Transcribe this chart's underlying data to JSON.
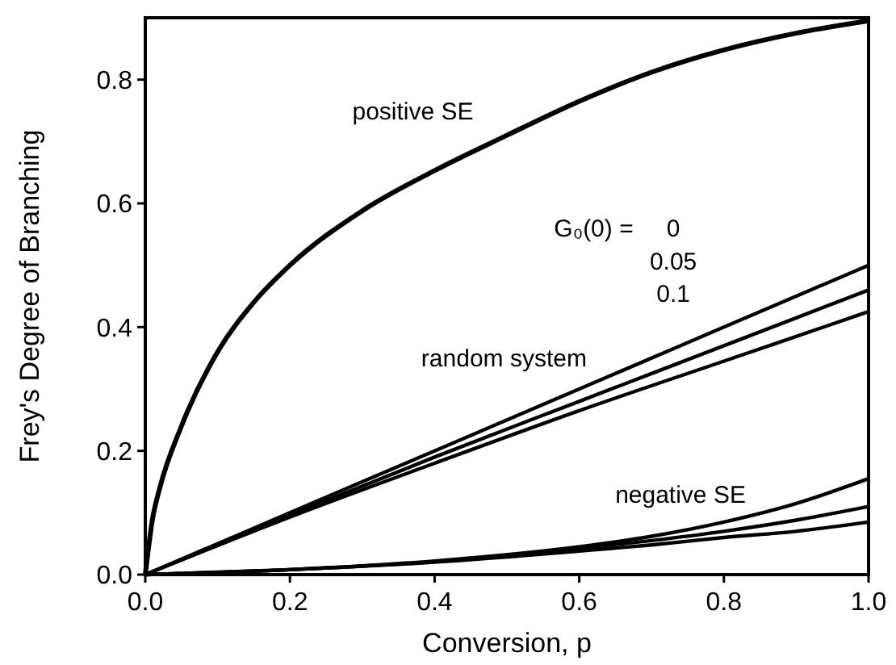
{
  "chart_data": {
    "type": "line",
    "xlabel": "Conversion, p",
    "ylabel": "Frey's Degree of Branching",
    "xlim": [
      0,
      1
    ],
    "ylim": [
      0,
      0.9
    ],
    "xticks": [
      {
        "value": 0,
        "label": "0.0"
      },
      0.2,
      0.4,
      0.6,
      0.8,
      {
        "value": 1,
        "label": "1.0"
      }
    ],
    "yticks": [
      {
        "value": 0,
        "label": "0.0"
      },
      0.2,
      0.4,
      0.6,
      0.8
    ],
    "grid": false,
    "marker": "none",
    "line_style": "solid",
    "series": [
      {
        "color": "#000000",
        "x": [
          0,
          0.01,
          0.02,
          0.05,
          0.1,
          0.15,
          0.2,
          0.3,
          0.4,
          0.5,
          0.6,
          0.7,
          0.8,
          0.9,
          1
        ],
        "values": [
          0,
          0.09,
          0.14,
          0.24,
          0.36,
          0.44,
          0.5,
          0.588,
          0.653,
          0.71,
          0.765,
          0.812,
          0.848,
          0.875,
          0.895
        ]
      },
      {
        "color": "#000000",
        "x": [
          0,
          0.2,
          0.4,
          0.6,
          0.8,
          1
        ],
        "values": [
          0,
          0.1,
          0.2,
          0.3,
          0.4,
          0.5
        ]
      },
      {
        "color": "#000000",
        "x": [
          0,
          0.2,
          0.4,
          0.6,
          0.8,
          1
        ],
        "values": [
          0,
          0.096,
          0.19,
          0.28,
          0.37,
          0.46
        ]
      },
      {
        "color": "#000000",
        "x": [
          0,
          0.2,
          0.4,
          0.6,
          0.8,
          1
        ],
        "values": [
          0,
          0.093,
          0.18,
          0.265,
          0.345,
          0.425
        ]
      },
      {
        "color": "#000000",
        "x": [
          0,
          0.2,
          0.4,
          0.6,
          0.7,
          0.8,
          0.9,
          1
        ],
        "values": [
          0,
          0.008,
          0.022,
          0.045,
          0.062,
          0.085,
          0.115,
          0.155
        ]
      },
      {
        "color": "#000000",
        "x": [
          0,
          0.2,
          0.4,
          0.6,
          0.7,
          0.8,
          0.9,
          1
        ],
        "values": [
          0,
          0.008,
          0.021,
          0.042,
          0.055,
          0.07,
          0.088,
          0.11
        ]
      },
      {
        "color": "#000000",
        "x": [
          0,
          0.2,
          0.4,
          0.6,
          0.7,
          0.8,
          0.9,
          1
        ],
        "values": [
          0,
          0.008,
          0.02,
          0.038,
          0.048,
          0.06,
          0.07,
          0.085
        ]
      }
    ],
    "annotations": [
      "positive SE",
      "G₀(0) =",
      "0",
      "0.05",
      "0.1",
      "random system",
      "negative SE"
    ]
  }
}
